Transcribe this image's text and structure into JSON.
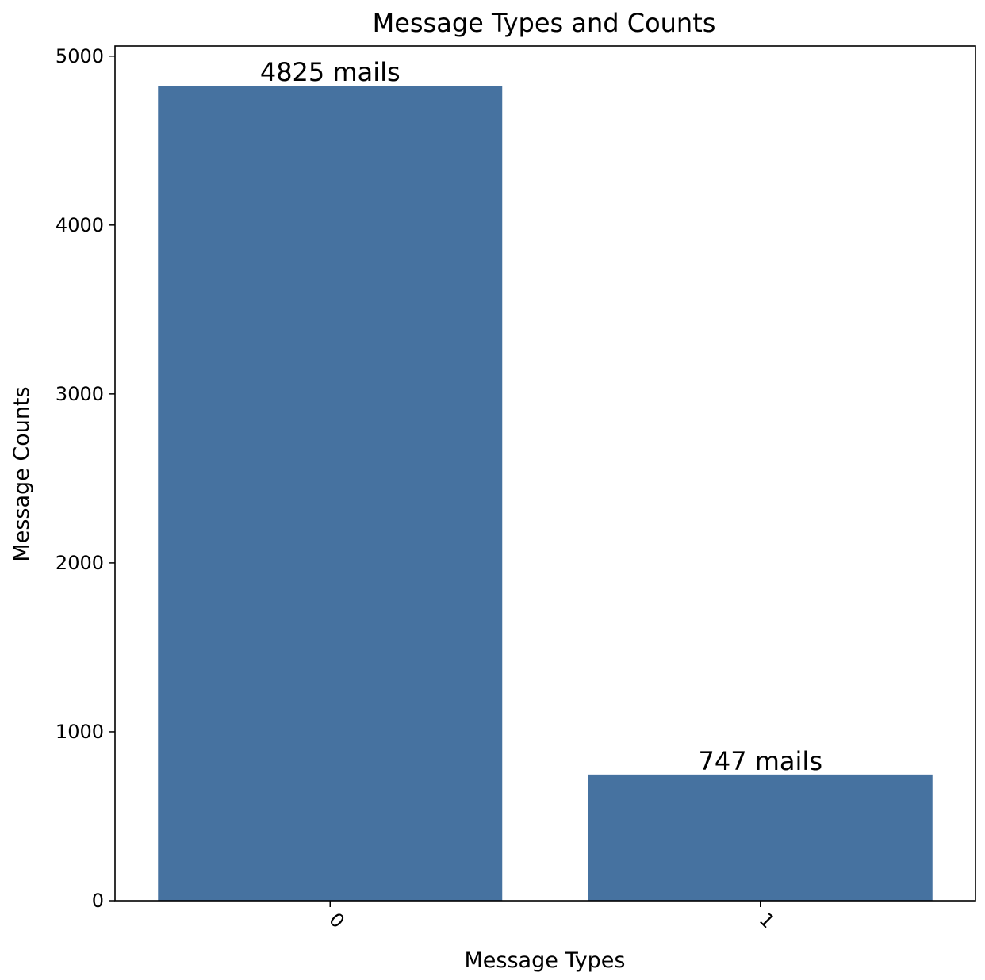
{
  "chart_data": {
    "type": "bar",
    "title": "Message Types and Counts",
    "xlabel": "Message Types",
    "ylabel": "Message Counts",
    "categories": [
      "0",
      "1"
    ],
    "values": [
      4825,
      747
    ],
    "data_labels": [
      "4825 mails",
      "747 mails"
    ],
    "ylim": [
      0,
      5060
    ],
    "yticks": [
      0,
      1000,
      2000,
      3000,
      4000,
      5000
    ],
    "ytick_labels": [
      "0",
      "1000",
      "2000",
      "3000",
      "4000",
      "5000"
    ],
    "xtick_rotation_deg": 45,
    "grid": false,
    "legend": "none",
    "bar_color": "#4672a0"
  }
}
